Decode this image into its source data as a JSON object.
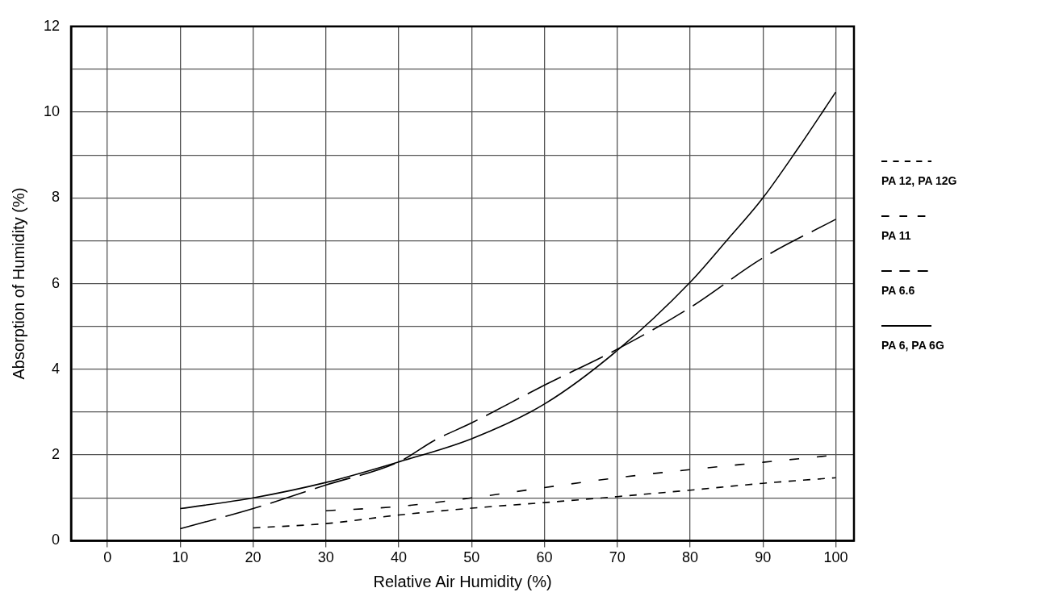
{
  "chart_data": {
    "type": "line",
    "xlabel": "Relative Air Humidity (%)",
    "ylabel": "Absorption of Humidity (%)",
    "xlim": [
      -5,
      102.5
    ],
    "ylim": [
      0,
      12
    ],
    "xticks": [
      0,
      10,
      20,
      30,
      40,
      50,
      60,
      70,
      80,
      90,
      100
    ],
    "yticks": [
      0,
      {
        "value": 1,
        "label": null
      },
      2,
      {
        "value": 3,
        "label": null
      },
      4,
      {
        "value": 5,
        "label": null
      },
      6,
      {
        "value": 7,
        "label": null
      },
      8,
      {
        "value": 9,
        "label": null
      },
      10,
      {
        "value": 11,
        "label": null
      },
      12
    ],
    "grid": true,
    "legend": "right",
    "marker": "none",
    "series": [
      {
        "name": "PA 12, PA 12G",
        "color": "#000000",
        "line_style": "dashed",
        "x": [
          20,
          30,
          40,
          50,
          60,
          70,
          80,
          90,
          100
        ],
        "values": [
          0.3,
          0.4,
          0.6,
          0.76,
          0.89,
          1.03,
          1.18,
          1.34,
          1.47
        ]
      },
      {
        "name": "PA 11",
        "color": "#000000",
        "line_style": "dashed",
        "x": [
          30,
          40,
          50,
          60,
          70,
          80,
          90,
          100
        ],
        "values": [
          0.7,
          0.8,
          1.0,
          1.24,
          1.47,
          1.66,
          1.83,
          2.0
        ]
      },
      {
        "name": "PA 6.6",
        "color": "#000000",
        "line_style": "dashed",
        "x": [
          10,
          20,
          30,
          40,
          45,
          50,
          60,
          70,
          80,
          90,
          100
        ],
        "values": [
          0.28,
          0.75,
          1.3,
          1.84,
          2.35,
          2.75,
          3.63,
          4.47,
          5.44,
          6.6,
          7.5
        ]
      },
      {
        "name": "PA 6, PA 6G",
        "color": "#000000",
        "line_style": "solid",
        "x": [
          10,
          20,
          30,
          40,
          50,
          60,
          70,
          80,
          85,
          90,
          95,
          100
        ],
        "values": [
          0.75,
          1.0,
          1.36,
          1.84,
          2.38,
          3.19,
          4.44,
          6.03,
          7.0,
          8.0,
          9.2,
          10.47
        ]
      }
    ]
  }
}
